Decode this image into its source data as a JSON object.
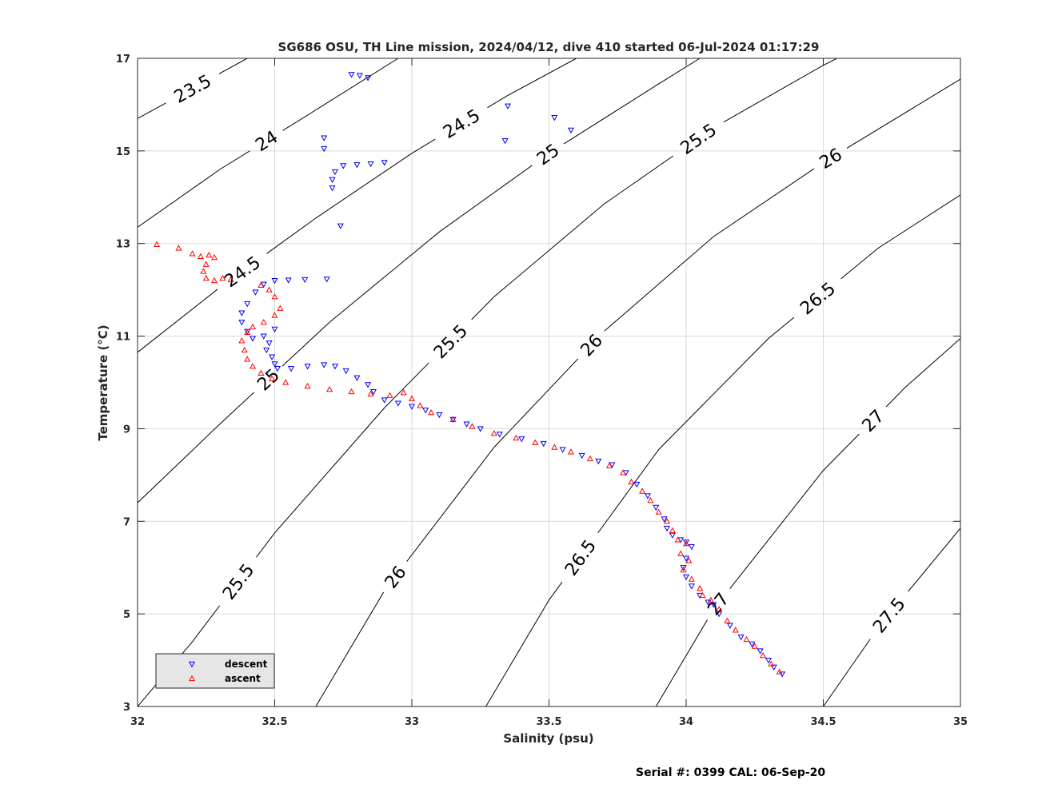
{
  "chart_data": {
    "type": "scatter",
    "title": "SG686 OSU, TH Line mission, 2024/04/12, dive 410 started 06-Jul-2024 01:17:29",
    "xlabel": "Salinity (psu)",
    "ylabel": "Temperature (°C)",
    "xlim": [
      32,
      35
    ],
    "ylim": [
      3,
      17
    ],
    "xticks": [
      "32",
      "32.5",
      "33",
      "33.5",
      "34",
      "34.5",
      "35"
    ],
    "yticks": [
      "3",
      "5",
      "7",
      "9",
      "11",
      "13",
      "15",
      "17"
    ],
    "grid": true,
    "legend_position": "bottom-left",
    "colors": {
      "descent": "#0000ff",
      "ascent": "#ff0000",
      "contour": "#000000",
      "grid": "#d9d9d9"
    },
    "contours": [
      {
        "label": "23.5",
        "points": [
          [
            32.0,
            15.7
          ],
          [
            32.4,
            17.0
          ]
        ]
      },
      {
        "label": "24",
        "points": [
          [
            32.0,
            13.35
          ],
          [
            32.3,
            14.6
          ],
          [
            32.6,
            15.7
          ],
          [
            32.95,
            17.0
          ]
        ]
      },
      {
        "label": "24.5",
        "points": [
          [
            32.0,
            10.65
          ],
          [
            32.3,
            12.05
          ],
          [
            32.65,
            13.55
          ],
          [
            33.0,
            14.95
          ],
          [
            33.35,
            16.2
          ],
          [
            33.6,
            17.0
          ]
        ]
      },
      {
        "label": "25",
        "points": [
          [
            32.0,
            7.4
          ],
          [
            32.3,
            9.1
          ],
          [
            32.7,
            11.3
          ],
          [
            33.1,
            13.25
          ],
          [
            33.5,
            14.95
          ],
          [
            33.9,
            16.45
          ],
          [
            34.05,
            17.0
          ]
        ]
      },
      {
        "label": "25.5",
        "points": [
          [
            32.0,
            3.0
          ],
          [
            32.2,
            4.4
          ],
          [
            32.5,
            6.75
          ],
          [
            32.9,
            9.45
          ],
          [
            33.3,
            11.85
          ],
          [
            33.7,
            13.85
          ],
          [
            34.1,
            15.5
          ],
          [
            34.5,
            16.85
          ],
          [
            34.55,
            17.0
          ]
        ]
      },
      {
        "label": "26",
        "points": [
          [
            32.65,
            3.0
          ],
          [
            32.9,
            5.5
          ],
          [
            33.3,
            8.6
          ],
          [
            33.7,
            11.1
          ],
          [
            34.1,
            13.15
          ],
          [
            34.5,
            14.75
          ],
          [
            35.0,
            16.55
          ]
        ]
      },
      {
        "label": "26.5",
        "points": [
          [
            33.27,
            3.0
          ],
          [
            33.5,
            5.3
          ],
          [
            33.9,
            8.55
          ],
          [
            34.3,
            10.95
          ],
          [
            34.7,
            12.9
          ],
          [
            35.0,
            14.05
          ]
        ]
      },
      {
        "label": "27",
        "points": [
          [
            33.89,
            3.0
          ],
          [
            34.1,
            5.1
          ],
          [
            34.5,
            8.1
          ],
          [
            34.8,
            9.9
          ],
          [
            35.0,
            10.95
          ]
        ]
      },
      {
        "label": "27.5",
        "points": [
          [
            34.5,
            3.0
          ],
          [
            34.7,
            4.7
          ],
          [
            35.0,
            6.85
          ]
        ]
      }
    ],
    "series": [
      {
        "name": "descent",
        "marker": "triangle-down",
        "points": [
          [
            32.78,
            16.65
          ],
          [
            32.81,
            16.63
          ],
          [
            32.84,
            16.58
          ],
          [
            33.35,
            15.97
          ],
          [
            33.52,
            15.72
          ],
          [
            33.58,
            15.45
          ],
          [
            33.34,
            15.22
          ],
          [
            32.68,
            15.28
          ],
          [
            32.68,
            15.05
          ],
          [
            32.72,
            14.55
          ],
          [
            32.75,
            14.68
          ],
          [
            32.8,
            14.7
          ],
          [
            32.85,
            14.72
          ],
          [
            32.9,
            14.75
          ],
          [
            32.71,
            14.38
          ],
          [
            32.71,
            14.2
          ],
          [
            32.74,
            13.38
          ],
          [
            32.5,
            12.2
          ],
          [
            32.55,
            12.21
          ],
          [
            32.61,
            12.22
          ],
          [
            32.69,
            12.23
          ],
          [
            32.46,
            12.12
          ],
          [
            32.43,
            11.95
          ],
          [
            32.4,
            11.7
          ],
          [
            32.38,
            11.5
          ],
          [
            32.38,
            11.3
          ],
          [
            32.4,
            11.1
          ],
          [
            32.42,
            10.95
          ],
          [
            32.46,
            11.0
          ],
          [
            32.5,
            11.15
          ],
          [
            32.48,
            10.85
          ],
          [
            32.47,
            10.7
          ],
          [
            32.49,
            10.55
          ],
          [
            32.5,
            10.4
          ],
          [
            32.51,
            10.3
          ],
          [
            32.56,
            10.3
          ],
          [
            32.62,
            10.35
          ],
          [
            32.68,
            10.38
          ],
          [
            32.72,
            10.35
          ],
          [
            32.76,
            10.25
          ],
          [
            32.8,
            10.1
          ],
          [
            32.84,
            9.95
          ],
          [
            32.86,
            9.8
          ],
          [
            32.9,
            9.62
          ],
          [
            32.95,
            9.55
          ],
          [
            33.0,
            9.48
          ],
          [
            33.05,
            9.4
          ],
          [
            33.1,
            9.3
          ],
          [
            33.15,
            9.2
          ],
          [
            33.2,
            9.1
          ],
          [
            33.25,
            9.0
          ],
          [
            33.32,
            8.88
          ],
          [
            33.4,
            8.78
          ],
          [
            33.48,
            8.68
          ],
          [
            33.55,
            8.55
          ],
          [
            33.62,
            8.42
          ],
          [
            33.68,
            8.3
          ],
          [
            33.73,
            8.22
          ],
          [
            33.78,
            8.05
          ],
          [
            33.82,
            7.8
          ],
          [
            33.86,
            7.55
          ],
          [
            33.89,
            7.3
          ],
          [
            33.92,
            7.05
          ],
          [
            33.93,
            6.85
          ],
          [
            33.95,
            6.7
          ],
          [
            33.98,
            6.6
          ],
          [
            34.0,
            6.55
          ],
          [
            34.02,
            6.45
          ],
          [
            34.0,
            6.2
          ],
          [
            33.99,
            6.0
          ],
          [
            34.0,
            5.8
          ],
          [
            34.02,
            5.6
          ],
          [
            34.05,
            5.4
          ],
          [
            34.08,
            5.25
          ],
          [
            34.1,
            5.2
          ],
          [
            34.12,
            5.0
          ],
          [
            34.16,
            4.75
          ],
          [
            34.2,
            4.5
          ],
          [
            34.24,
            4.35
          ],
          [
            34.27,
            4.2
          ],
          [
            34.3,
            4.0
          ],
          [
            34.32,
            3.85
          ],
          [
            34.35,
            3.7
          ]
        ]
      },
      {
        "name": "ascent",
        "marker": "triangle-up",
        "points": [
          [
            32.07,
            12.98
          ],
          [
            32.15,
            12.9
          ],
          [
            32.2,
            12.78
          ],
          [
            32.23,
            12.72
          ],
          [
            32.26,
            12.75
          ],
          [
            32.28,
            12.7
          ],
          [
            32.25,
            12.55
          ],
          [
            32.24,
            12.4
          ],
          [
            32.25,
            12.25
          ],
          [
            32.28,
            12.2
          ],
          [
            32.31,
            12.25
          ],
          [
            32.34,
            12.22
          ],
          [
            32.45,
            12.1
          ],
          [
            32.48,
            12.0
          ],
          [
            32.5,
            11.85
          ],
          [
            32.52,
            11.6
          ],
          [
            32.5,
            11.45
          ],
          [
            32.46,
            11.3
          ],
          [
            32.42,
            11.2
          ],
          [
            32.4,
            11.08
          ],
          [
            32.38,
            10.9
          ],
          [
            32.39,
            10.7
          ],
          [
            32.4,
            10.5
          ],
          [
            32.42,
            10.35
          ],
          [
            32.45,
            10.2
          ],
          [
            32.49,
            10.08
          ],
          [
            32.54,
            10.0
          ],
          [
            32.62,
            9.92
          ],
          [
            32.7,
            9.85
          ],
          [
            32.78,
            9.8
          ],
          [
            32.85,
            9.75
          ],
          [
            32.92,
            9.72
          ],
          [
            32.97,
            9.78
          ],
          [
            33.0,
            9.65
          ],
          [
            33.03,
            9.5
          ],
          [
            33.07,
            9.35
          ],
          [
            33.15,
            9.2
          ],
          [
            33.22,
            9.05
          ],
          [
            33.3,
            8.9
          ],
          [
            33.38,
            8.8
          ],
          [
            33.45,
            8.7
          ],
          [
            33.52,
            8.6
          ],
          [
            33.58,
            8.5
          ],
          [
            33.65,
            8.35
          ],
          [
            33.72,
            8.2
          ],
          [
            33.77,
            8.05
          ],
          [
            33.8,
            7.85
          ],
          [
            33.84,
            7.65
          ],
          [
            33.87,
            7.45
          ],
          [
            33.9,
            7.2
          ],
          [
            33.93,
            7.0
          ],
          [
            33.95,
            6.8
          ],
          [
            33.97,
            6.6
          ],
          [
            34.0,
            6.52
          ],
          [
            33.98,
            6.3
          ],
          [
            34.01,
            6.15
          ],
          [
            33.99,
            5.95
          ],
          [
            34.02,
            5.75
          ],
          [
            34.05,
            5.55
          ],
          [
            34.06,
            5.4
          ],
          [
            34.09,
            5.3
          ],
          [
            34.12,
            5.1
          ],
          [
            34.15,
            4.85
          ],
          [
            34.18,
            4.65
          ],
          [
            34.22,
            4.45
          ],
          [
            34.25,
            4.3
          ],
          [
            34.28,
            4.1
          ],
          [
            34.31,
            3.92
          ],
          [
            34.34,
            3.75
          ]
        ]
      }
    ],
    "legend": [
      {
        "label": "descent",
        "marker": "triangle-down"
      },
      {
        "label": "ascent",
        "marker": "triangle-up"
      }
    ]
  },
  "footer": "Serial #: 0399  CAL: 06-Sep-20"
}
